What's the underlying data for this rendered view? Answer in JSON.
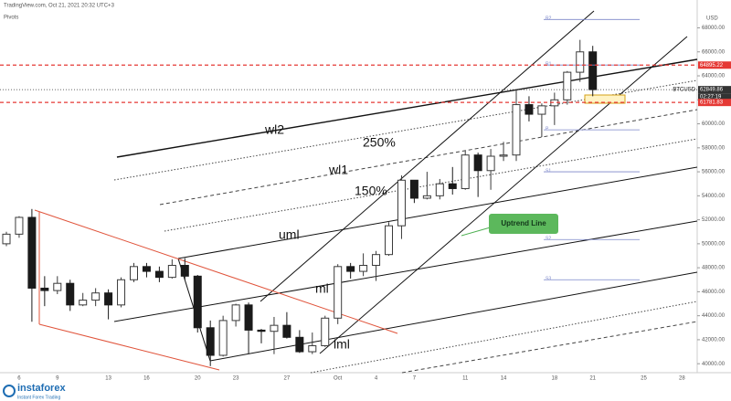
{
  "header": "TradingView.com, Oct 21, 2021 20:32 UTC+3",
  "indicator": "Pivots",
  "chart_data": {
    "type": "candlestick",
    "symbol": "BTCUSD",
    "currency": "USD",
    "categories": [
      null,
      "6",
      null,
      null,
      "9",
      null,
      null,
      null,
      "13",
      null,
      null,
      "16",
      null,
      null,
      null,
      "20",
      null,
      null,
      "23",
      null,
      null,
      null,
      "27",
      null,
      null,
      null,
      "Oct",
      null,
      null,
      "4",
      null,
      null,
      "7",
      null,
      null,
      null,
      "11",
      null,
      null,
      "14",
      null,
      null,
      null,
      "18",
      null,
      null,
      "21",
      null,
      null,
      null,
      "25",
      null,
      null,
      "28",
      null
    ],
    "open": [
      50000,
      50800,
      52200,
      46300,
      46100,
      46700,
      44900,
      45300,
      45900,
      44900,
      47000,
      48100,
      47700,
      47200,
      48200,
      47300,
      43000,
      40700,
      43600,
      44900,
      42800,
      42700,
      43200,
      42200,
      41000,
      41500,
      43800,
      48100,
      47700,
      48200,
      49100,
      51500,
      55300,
      53800,
      54000,
      55000,
      54600,
      57400,
      56100,
      57300,
      57400,
      61600,
      60800,
      61500,
      62000,
      64300,
      66000,
      null,
      null,
      null,
      null,
      null,
      null,
      null,
      null
    ],
    "high": [
      51000,
      52300,
      52900,
      47300,
      47300,
      47000,
      45900,
      46300,
      46200,
      47200,
      48400,
      48400,
      48100,
      48700,
      48800,
      47400,
      43600,
      44000,
      45000,
      45100,
      42900,
      43900,
      44300,
      42800,
      42600,
      44000,
      48300,
      48400,
      49200,
      49400,
      51800,
      55700,
      55300,
      56000,
      55400,
      56400,
      57800,
      57600,
      57900,
      58500,
      62800,
      62300,
      61700,
      62600,
      64400,
      67000,
      66500,
      null,
      null,
      null,
      null,
      null,
      null,
      null,
      null
    ],
    "low": [
      49800,
      50500,
      43500,
      44800,
      45800,
      44400,
      44800,
      44800,
      43700,
      44700,
      46800,
      47200,
      46800,
      47100,
      47000,
      42600,
      39800,
      40600,
      43100,
      40800,
      41700,
      40800,
      42100,
      40900,
      40800,
      41400,
      43300,
      47100,
      47300,
      46900,
      49000,
      50400,
      53400,
      53700,
      53700,
      54100,
      54500,
      53900,
      54500,
      56900,
      56900,
      60200,
      58900,
      59900,
      61600,
      63500,
      62300,
      null,
      null,
      null,
      null,
      null,
      null,
      null,
      null
    ],
    "close": [
      50800,
      52200,
      46300,
      46100,
      46700,
      44900,
      45300,
      45900,
      44900,
      47000,
      48100,
      47700,
      47200,
      48200,
      47300,
      43000,
      40700,
      43600,
      44900,
      42800,
      42700,
      43200,
      42200,
      41000,
      41500,
      43800,
      48100,
      47700,
      48200,
      49100,
      51500,
      55300,
      53800,
      54000,
      55000,
      54600,
      57400,
      56100,
      57300,
      57400,
      61600,
      60800,
      61500,
      62000,
      64300,
      66000,
      62849.86,
      null,
      null,
      null,
      null,
      null,
      null,
      null,
      null
    ],
    "up_color": "#3a3a3a",
    "down_color": "#1a1a1a",
    "ylim": [
      39100,
      68800
    ],
    "yticks": [
      {
        "value": 40000,
        "label": "40000.00"
      },
      {
        "value": 42000,
        "label": "42000.00"
      },
      {
        "value": 44000,
        "label": "44000.00"
      },
      {
        "value": 46000,
        "label": "46000.00"
      },
      {
        "value": 48000,
        "label": "48000.00"
      },
      {
        "value": 50000,
        "label": "50000.00"
      },
      {
        "value": 52000,
        "label": "52000.00"
      },
      {
        "value": 54000,
        "label": "54000.00"
      },
      {
        "value": 56000,
        "label": "56000.00"
      },
      {
        "value": 58000,
        "label": "58000.00"
      },
      {
        "value": 60000,
        "label": "60000.00"
      },
      {
        "value": 62000,
        "label": "62000.00"
      },
      {
        "value": 64000,
        "label": "64000.00"
      },
      {
        "value": 66000,
        "label": "66000.00"
      },
      {
        "value": 68000,
        "label": "68000.00"
      }
    ],
    "levels": [
      {
        "value": 64895.22,
        "label": "64895.22",
        "color": "#e53935",
        "style": "dashed"
      },
      {
        "value": 62849.86,
        "label": "62849.86",
        "color": "#333333",
        "style": "dotted"
      },
      {
        "value": 61781.83,
        "label": "61781.83",
        "color": "#e53935",
        "style": "dashed"
      }
    ],
    "countdown": "02:27:19",
    "pivots": [
      {
        "name": "R2",
        "value": 68700
      },
      {
        "name": "R1",
        "value": 64900
      },
      {
        "name": "P",
        "value": 59500
      },
      {
        "name": "S1",
        "value": 56000
      },
      {
        "name": "S2",
        "value": 50350
      },
      {
        "name": "S3",
        "value": 47000
      }
    ],
    "pivot_color": "#7b86c9",
    "annotations": [
      "wl2",
      "250%",
      "wl1",
      "150%",
      "uml",
      "ml",
      "lml",
      "Uptrend Line"
    ]
  },
  "footer": {
    "brand": "instaforex",
    "tagline": "Instant Forex Trading"
  }
}
